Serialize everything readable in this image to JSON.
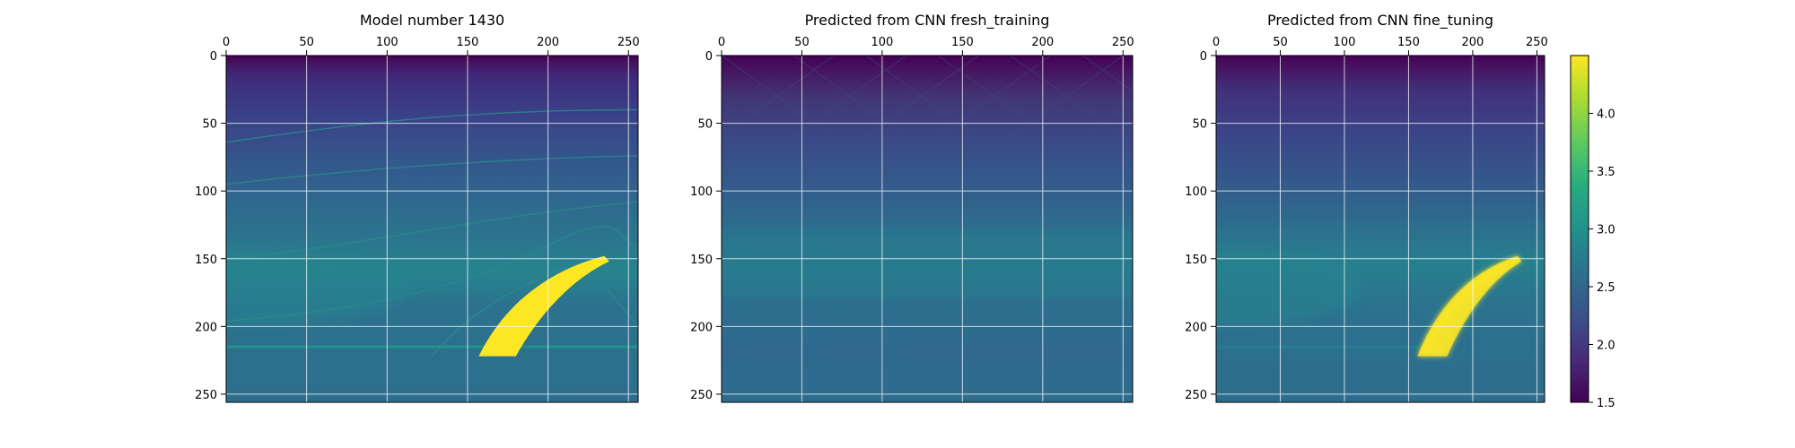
{
  "chart_data": [
    {
      "type": "heatmap",
      "title": "Model number 1430",
      "x_ticks": [
        "0",
        "50",
        "100",
        "150",
        "200",
        "250"
      ],
      "y_ticks": [
        "0",
        "50",
        "100",
        "150",
        "200",
        "250"
      ],
      "xlim": [
        0,
        256
      ],
      "ylim": [
        256,
        0
      ],
      "x_axis_position": "top",
      "grid": true,
      "colormap": "viridis",
      "description_values": {
        "background_layers": [
          {
            "y_from": 0,
            "y_to": 5,
            "value": 1.6
          },
          {
            "y_from": 5,
            "y_to": 40,
            "value": 1.9
          },
          {
            "y_from": 40,
            "y_to": 100,
            "value": 2.2
          },
          {
            "y_from": 100,
            "y_to": 140,
            "value": 2.5
          },
          {
            "y_from": 140,
            "y_to": 200,
            "value": 2.8
          },
          {
            "y_from": 200,
            "y_to": 256,
            "value": 2.6
          }
        ],
        "anomaly": {
          "value": 4.5,
          "x_range": [
            157,
            238
          ],
          "y_range": [
            148,
            222
          ]
        }
      }
    },
    {
      "type": "heatmap",
      "title": "Predicted from CNN fresh_training",
      "x_ticks": [
        "0",
        "50",
        "100",
        "150",
        "200",
        "250"
      ],
      "y_ticks": [
        "0",
        "50",
        "100",
        "150",
        "200",
        "250"
      ],
      "xlim": [
        0,
        256
      ],
      "ylim": [
        256,
        0
      ],
      "x_axis_position": "top",
      "grid": true,
      "colormap": "viridis",
      "description_values": {
        "background_layers": [
          {
            "y_from": 0,
            "y_to": 15,
            "value": 1.6
          },
          {
            "y_from": 15,
            "y_to": 60,
            "value": 2.0
          },
          {
            "y_from": 60,
            "y_to": 130,
            "value": 2.3
          },
          {
            "y_from": 130,
            "y_to": 180,
            "value": 2.65
          },
          {
            "y_from": 180,
            "y_to": 256,
            "value": 2.5
          }
        ]
      }
    },
    {
      "type": "heatmap",
      "title": "Predicted from CNN fine_tuning",
      "x_ticks": [
        "0",
        "50",
        "100",
        "150",
        "200",
        "250"
      ],
      "y_ticks": [
        "0",
        "50",
        "100",
        "150",
        "200",
        "250"
      ],
      "xlim": [
        0,
        256
      ],
      "ylim": [
        256,
        0
      ],
      "x_axis_position": "top",
      "grid": true,
      "colormap": "viridis",
      "description_values": {
        "background_layers": [
          {
            "y_from": 0,
            "y_to": 10,
            "value": 1.6
          },
          {
            "y_from": 10,
            "y_to": 50,
            "value": 1.95
          },
          {
            "y_from": 50,
            "y_to": 110,
            "value": 2.25
          },
          {
            "y_from": 110,
            "y_to": 150,
            "value": 2.55
          },
          {
            "y_from": 150,
            "y_to": 200,
            "value": 2.8
          },
          {
            "y_from": 200,
            "y_to": 256,
            "value": 2.6
          }
        ],
        "anomaly": {
          "value": 4.4,
          "x_range": [
            160,
            234
          ],
          "y_range": [
            150,
            222
          ]
        }
      }
    }
  ],
  "colorbar": {
    "min": 1.5,
    "max": 4.5,
    "ticks": [
      "1.5",
      "2.0",
      "2.5",
      "3.0",
      "3.5",
      "4.0"
    ],
    "colormap": "viridis"
  },
  "colors": {
    "viridis_low": "#440154",
    "viridis_mid": "#21918c",
    "viridis_high": "#fde725"
  }
}
